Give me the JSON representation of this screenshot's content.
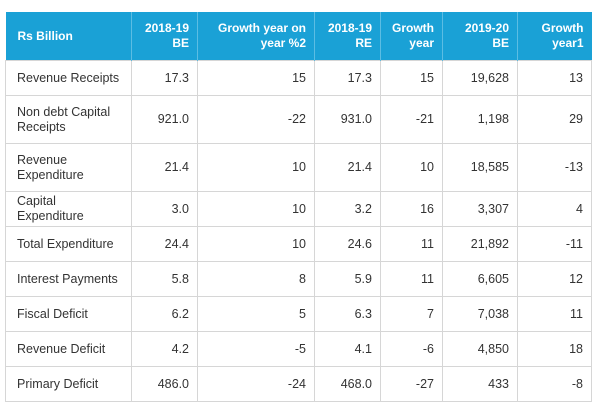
{
  "table": {
    "headers": [
      "Rs Billion",
      "2018-19 BE",
      "Growth year on year %2",
      "2018-19 RE",
      "Growth year",
      "2019-20 BE",
      "Growth year1"
    ],
    "rows": [
      [
        "Revenue Receipts",
        "17.3",
        "15",
        "17.3",
        "15",
        "19,628",
        "13"
      ],
      [
        "Non debt Capital Receipts",
        "921.0",
        "-22",
        "931.0",
        "-21",
        "1,198",
        "29"
      ],
      [
        "Revenue Expenditure",
        "21.4",
        "10",
        "21.4",
        "10",
        "18,585",
        "-13"
      ],
      [
        "Capital Expenditure",
        "3.0",
        "10",
        "3.2",
        "16",
        "3,307",
        "4"
      ],
      [
        "Total Expenditure",
        "24.4",
        "10",
        "24.6",
        "11",
        "21,892",
        "-11"
      ],
      [
        "Interest Payments",
        "5.8",
        "8",
        "5.9",
        "11",
        "6,605",
        "12"
      ],
      [
        "Fiscal Deficit",
        "6.2",
        "5",
        "6.3",
        "7",
        "7,038",
        "11"
      ],
      [
        "Revenue Deficit",
        "4.2",
        "-5",
        "4.1",
        "-6",
        "4,850",
        "18"
      ],
      [
        "Primary Deficit",
        "486.0",
        "-24",
        "468.0",
        "-27",
        "433",
        "-8"
      ]
    ]
  },
  "colors": {
    "header_bg": "#1aa1d6",
    "header_text": "#ffffff",
    "border": "#d6d6d6",
    "body_text": "#333333"
  }
}
